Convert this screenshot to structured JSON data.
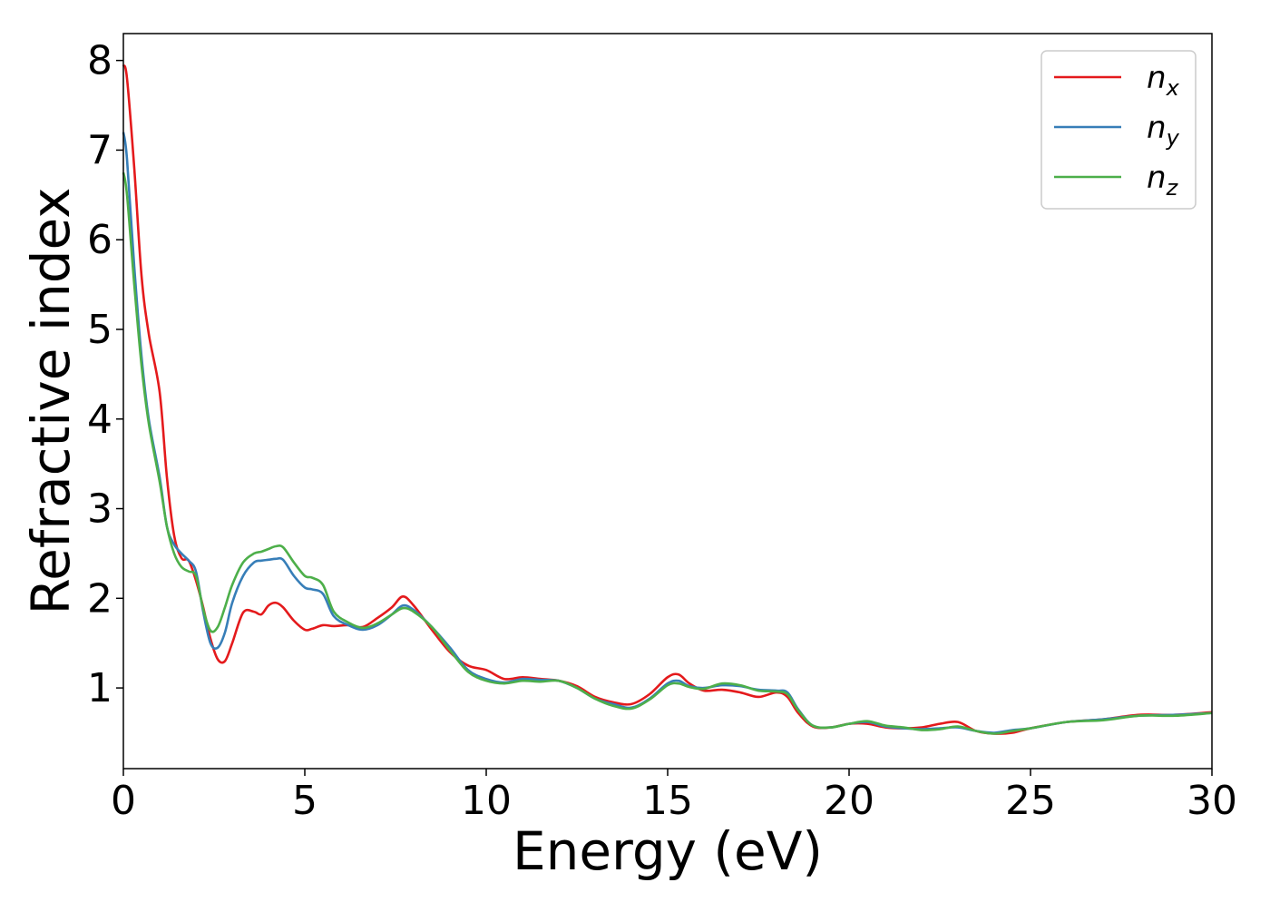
{
  "chart_data": {
    "type": "line",
    "title": "",
    "xlabel": "Energy (eV)",
    "ylabel": "Refractive index",
    "xlim": [
      0,
      30
    ],
    "ylim": [
      0.1,
      8.3
    ],
    "xticks": [
      0,
      5,
      10,
      15,
      20,
      25,
      30
    ],
    "yticks": [
      1,
      2,
      3,
      4,
      5,
      6,
      7,
      8
    ],
    "grid": false,
    "legend_placement": "top-right",
    "series": [
      {
        "name": "n_x",
        "legend_base": "n",
        "legend_sub": "x",
        "color": "#e41a1c",
        "x": [
          0,
          0.1,
          0.3,
          0.5,
          0.7,
          1.0,
          1.2,
          1.4,
          1.6,
          1.8,
          2.0,
          2.2,
          2.4,
          2.6,
          2.8,
          3.0,
          3.3,
          3.6,
          3.8,
          4.0,
          4.2,
          4.4,
          4.7,
          5.0,
          5.2,
          5.5,
          5.8,
          6.2,
          6.6,
          7.0,
          7.4,
          7.7,
          8.0,
          8.5,
          9.0,
          9.5,
          10.0,
          10.5,
          11.0,
          11.5,
          12.0,
          12.5,
          13.0,
          13.5,
          14.0,
          14.5,
          15.0,
          15.3,
          15.6,
          16.0,
          16.5,
          17.0,
          17.5,
          18.0,
          18.3,
          18.6,
          19.0,
          19.5,
          20.0,
          20.5,
          21.0,
          21.5,
          22.0,
          22.5,
          23.0,
          23.5,
          24.0,
          24.5,
          25.0,
          26.0,
          27.0,
          28.0,
          29.0,
          30.0
        ],
        "values": [
          7.95,
          7.8,
          6.8,
          5.6,
          4.95,
          4.3,
          3.35,
          2.7,
          2.45,
          2.42,
          2.2,
          1.9,
          1.55,
          1.32,
          1.3,
          1.5,
          1.84,
          1.85,
          1.82,
          1.92,
          1.95,
          1.9,
          1.75,
          1.65,
          1.66,
          1.7,
          1.69,
          1.7,
          1.68,
          1.78,
          1.9,
          2.02,
          1.92,
          1.65,
          1.4,
          1.25,
          1.2,
          1.1,
          1.12,
          1.1,
          1.08,
          1.02,
          0.9,
          0.84,
          0.82,
          0.93,
          1.12,
          1.15,
          1.05,
          0.97,
          0.98,
          0.95,
          0.9,
          0.95,
          0.9,
          0.72,
          0.57,
          0.56,
          0.6,
          0.6,
          0.56,
          0.55,
          0.56,
          0.6,
          0.62,
          0.52,
          0.49,
          0.5,
          0.55,
          0.62,
          0.65,
          0.7,
          0.7,
          0.73
        ]
      },
      {
        "name": "n_y",
        "legend_base": "n",
        "legend_sub": "y",
        "color": "#377eb8",
        "x": [
          0,
          0.1,
          0.3,
          0.5,
          0.7,
          1.0,
          1.2,
          1.4,
          1.6,
          1.8,
          2.0,
          2.2,
          2.4,
          2.6,
          2.8,
          3.0,
          3.3,
          3.6,
          3.8,
          4.0,
          4.2,
          4.4,
          4.7,
          5.0,
          5.2,
          5.5,
          5.8,
          6.2,
          6.6,
          7.0,
          7.4,
          7.7,
          8.0,
          8.5,
          9.0,
          9.5,
          10.0,
          10.5,
          11.0,
          11.5,
          12.0,
          12.5,
          13.0,
          13.5,
          14.0,
          14.5,
          15.0,
          15.3,
          15.6,
          16.0,
          16.5,
          17.0,
          17.5,
          18.0,
          18.3,
          18.6,
          19.0,
          19.5,
          20.0,
          20.5,
          21.0,
          21.5,
          22.0,
          22.5,
          23.0,
          23.5,
          24.0,
          24.5,
          25.0,
          26.0,
          27.0,
          28.0,
          29.0,
          30.0
        ],
        "values": [
          7.2,
          6.9,
          5.7,
          4.7,
          4.0,
          3.35,
          2.8,
          2.6,
          2.5,
          2.42,
          2.3,
          1.85,
          1.5,
          1.45,
          1.62,
          1.95,
          2.25,
          2.4,
          2.42,
          2.43,
          2.44,
          2.43,
          2.25,
          2.12,
          2.1,
          2.05,
          1.8,
          1.7,
          1.65,
          1.7,
          1.82,
          1.92,
          1.87,
          1.68,
          1.45,
          1.2,
          1.1,
          1.06,
          1.1,
          1.09,
          1.08,
          1.0,
          0.88,
          0.82,
          0.78,
          0.88,
          1.05,
          1.08,
          1.02,
          1.0,
          1.03,
          1.02,
          0.98,
          0.97,
          0.95,
          0.76,
          0.58,
          0.56,
          0.6,
          0.62,
          0.57,
          0.55,
          0.54,
          0.55,
          0.56,
          0.52,
          0.5,
          0.53,
          0.55,
          0.62,
          0.65,
          0.69,
          0.7,
          0.72
        ]
      },
      {
        "name": "n_z",
        "legend_base": "n",
        "legend_sub": "z",
        "color": "#4daf4a",
        "x": [
          0,
          0.1,
          0.3,
          0.5,
          0.7,
          1.0,
          1.2,
          1.4,
          1.6,
          1.8,
          2.0,
          2.2,
          2.4,
          2.6,
          2.8,
          3.0,
          3.3,
          3.6,
          3.8,
          4.0,
          4.2,
          4.4,
          4.7,
          5.0,
          5.2,
          5.5,
          5.8,
          6.2,
          6.6,
          7.0,
          7.4,
          7.7,
          8.0,
          8.5,
          9.0,
          9.5,
          10.0,
          10.5,
          11.0,
          11.5,
          12.0,
          12.5,
          13.0,
          13.5,
          14.0,
          14.5,
          15.0,
          15.3,
          15.6,
          16.0,
          16.5,
          17.0,
          17.5,
          18.0,
          18.3,
          18.6,
          19.0,
          19.5,
          20.0,
          20.5,
          21.0,
          21.5,
          22.0,
          22.5,
          23.0,
          23.5,
          24.0,
          24.5,
          25.0,
          26.0,
          27.0,
          28.0,
          29.0,
          30.0
        ],
        "values": [
          6.75,
          6.5,
          5.5,
          4.6,
          3.95,
          3.3,
          2.8,
          2.5,
          2.35,
          2.3,
          2.25,
          1.88,
          1.64,
          1.68,
          1.9,
          2.15,
          2.4,
          2.5,
          2.52,
          2.55,
          2.58,
          2.57,
          2.4,
          2.25,
          2.23,
          2.15,
          1.85,
          1.73,
          1.67,
          1.72,
          1.82,
          1.89,
          1.85,
          1.68,
          1.42,
          1.18,
          1.08,
          1.05,
          1.08,
          1.07,
          1.08,
          1.0,
          0.88,
          0.8,
          0.77,
          0.87,
          1.03,
          1.05,
          1.01,
          0.99,
          1.05,
          1.03,
          0.97,
          0.96,
          0.93,
          0.75,
          0.58,
          0.56,
          0.6,
          0.63,
          0.58,
          0.56,
          0.53,
          0.54,
          0.57,
          0.52,
          0.49,
          0.52,
          0.55,
          0.62,
          0.64,
          0.69,
          0.69,
          0.72
        ]
      }
    ]
  }
}
